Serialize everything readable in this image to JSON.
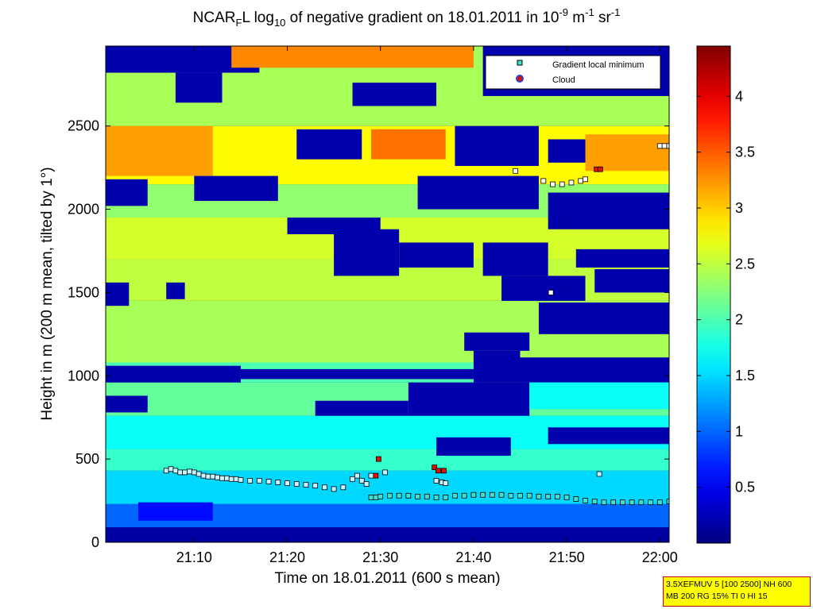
{
  "title": {
    "prefix": "NCAR",
    "sub1": "F",
    "mid1": "L log",
    "sub2": "10",
    "mid2": " of negative gradient on 18.01.2011 in 10",
    "sup1": "-9",
    "mid3": " m",
    "sup2": "-1",
    "mid4": " sr",
    "sup3": "-1"
  },
  "info_box": {
    "line1": "3.5XEFMUV 5 [100 2500] NH 600",
    "line2": "MB 200 RG 15% TI 0 HI 15"
  },
  "colors": {
    "colormap": "jet",
    "background_low": "#00007f",
    "marker_min_fill": "#ffffff",
    "marker_cloud": "#dd1100"
  },
  "chart_data": {
    "type": "heatmap",
    "xlabel": "Time on 18.01.2011 (600 s mean)",
    "ylabel": "Height in m (200 m mean, tilted by 1°)",
    "x_ticks": [
      "21:10",
      "21:20",
      "21:30",
      "21:40",
      "21:50",
      "22:00"
    ],
    "x_tick_minutes": [
      10,
      20,
      30,
      40,
      50,
      60
    ],
    "xlim_minutes_after_21h": [
      0.5,
      61
    ],
    "y_ticks": [
      "0",
      "500",
      "1000",
      "1500",
      "2000",
      "2500"
    ],
    "ylim": [
      0,
      2980
    ],
    "colorbar": {
      "ticks": [
        "0.5",
        "1",
        "1.5",
        "2",
        "2.5",
        "3",
        "3.5",
        "4"
      ],
      "tick_values": [
        0.5,
        1,
        1.5,
        2,
        2.5,
        3,
        3.5,
        4
      ],
      "range": [
        0,
        4.45
      ]
    },
    "legend": {
      "position": "top-right",
      "entries": [
        "Gradient local minimum",
        "Cloud"
      ]
    },
    "layers": [
      {
        "t0": 0.5,
        "t1": 61,
        "h0": 0,
        "h1": 90,
        "value": 0.15
      },
      {
        "t0": 0.5,
        "t1": 61,
        "h0": 90,
        "h1": 230,
        "value": 1.0
      },
      {
        "t0": 0.5,
        "t1": 61,
        "h0": 230,
        "h1": 430,
        "value": 1.5
      },
      {
        "t0": 0.5,
        "t1": 61,
        "h0": 430,
        "h1": 560,
        "value": 1.9
      },
      {
        "t0": 0.5,
        "t1": 61,
        "h0": 560,
        "h1": 760,
        "value": 1.7
      },
      {
        "t0": 0.5,
        "t1": 61,
        "h0": 760,
        "h1": 960,
        "value": 2.1
      },
      {
        "t0": 0.5,
        "t1": 61,
        "h0": 960,
        "h1": 1080,
        "value": 2.0
      },
      {
        "t0": 0.5,
        "t1": 61,
        "h0": 1080,
        "h1": 1450,
        "value": 2.4
      },
      {
        "t0": 0.5,
        "t1": 61,
        "h0": 1450,
        "h1": 1700,
        "value": 2.5
      },
      {
        "t0": 0.5,
        "t1": 61,
        "h0": 1700,
        "h1": 1950,
        "value": 2.6
      },
      {
        "t0": 0.5,
        "t1": 61,
        "h0": 1950,
        "h1": 2150,
        "value": 2.3
      },
      {
        "t0": 0.5,
        "t1": 61,
        "h0": 2150,
        "h1": 2500,
        "value": 2.8
      },
      {
        "t0": 0.5,
        "t1": 61,
        "h0": 2500,
        "h1": 2980,
        "value": 2.4
      }
    ],
    "patches": [
      {
        "t0": 0.5,
        "t1": 17,
        "h0": 2820,
        "h1": 2980,
        "value": 0.2
      },
      {
        "t0": 14,
        "t1": 40,
        "h0": 2850,
        "h1": 2980,
        "value": 3.3
      },
      {
        "t0": 41,
        "t1": 61,
        "h0": 2680,
        "h1": 2980,
        "value": 0.2
      },
      {
        "t0": 8,
        "t1": 13,
        "h0": 2640,
        "h1": 2820,
        "value": 0.2
      },
      {
        "t0": 27,
        "t1": 36,
        "h0": 2620,
        "h1": 2760,
        "value": 0.2
      },
      {
        "t0": 0.5,
        "t1": 12,
        "h0": 2200,
        "h1": 2500,
        "value": 3.2
      },
      {
        "t0": 29,
        "t1": 37,
        "h0": 2300,
        "h1": 2480,
        "value": 3.4
      },
      {
        "t0": 52,
        "t1": 61,
        "h0": 2230,
        "h1": 2450,
        "value": 3.2
      },
      {
        "t0": 21,
        "t1": 28,
        "h0": 2300,
        "h1": 2480,
        "value": 0.2
      },
      {
        "t0": 38,
        "t1": 47,
        "h0": 2260,
        "h1": 2500,
        "value": 0.2
      },
      {
        "t0": 48,
        "t1": 52,
        "h0": 2280,
        "h1": 2420,
        "value": 0.2
      },
      {
        "t0": 0.5,
        "t1": 5,
        "h0": 2020,
        "h1": 2180,
        "value": 0.2
      },
      {
        "t0": 10,
        "t1": 19,
        "h0": 2050,
        "h1": 2200,
        "value": 0.2
      },
      {
        "t0": 34,
        "t1": 47,
        "h0": 2000,
        "h1": 2200,
        "value": 0.2
      },
      {
        "t0": 48,
        "t1": 61,
        "h0": 1880,
        "h1": 2100,
        "value": 0.2
      },
      {
        "t0": 20,
        "t1": 30,
        "h0": 1850,
        "h1": 1950,
        "value": 0.2
      },
      {
        "t0": 25,
        "t1": 32,
        "h0": 1600,
        "h1": 1880,
        "value": 0.2
      },
      {
        "t0": 32,
        "t1": 40,
        "h0": 1650,
        "h1": 1800,
        "value": 0.2
      },
      {
        "t0": 41,
        "t1": 48,
        "h0": 1600,
        "h1": 1800,
        "value": 0.2
      },
      {
        "t0": 51,
        "t1": 61,
        "h0": 1650,
        "h1": 1760,
        "value": 0.2
      },
      {
        "t0": 43,
        "t1": 52,
        "h0": 1450,
        "h1": 1600,
        "value": 0.2
      },
      {
        "t0": 53,
        "t1": 61,
        "h0": 1500,
        "h1": 1640,
        "value": 0.2
      },
      {
        "t0": 0.5,
        "t1": 3,
        "h0": 1420,
        "h1": 1560,
        "value": 0.2
      },
      {
        "t0": 7,
        "t1": 9,
        "h0": 1460,
        "h1": 1560,
        "value": 0.2
      },
      {
        "t0": 47,
        "t1": 61,
        "h0": 1250,
        "h1": 1440,
        "value": 0.2
      },
      {
        "t0": 39,
        "t1": 46,
        "h0": 1150,
        "h1": 1260,
        "value": 0.2
      },
      {
        "t0": 40,
        "t1": 45,
        "h0": 960,
        "h1": 1150,
        "value": 0.2
      },
      {
        "t0": 45,
        "t1": 61,
        "h0": 960,
        "h1": 1110,
        "value": 0.2
      },
      {
        "t0": 0.5,
        "t1": 15,
        "h0": 960,
        "h1": 1060,
        "value": 0.2
      },
      {
        "t0": 15,
        "t1": 40,
        "h0": 980,
        "h1": 1040,
        "value": 0.2
      },
      {
        "t0": 33,
        "t1": 46,
        "h0": 760,
        "h1": 960,
        "value": 0.2
      },
      {
        "t0": 46,
        "t1": 61,
        "h0": 800,
        "h1": 960,
        "value": 1.7
      },
      {
        "t0": 23,
        "t1": 33,
        "h0": 760,
        "h1": 850,
        "value": 0.2
      },
      {
        "t0": 0.5,
        "t1": 5,
        "h0": 780,
        "h1": 880,
        "value": 0.2
      },
      {
        "t0": 48,
        "t1": 61,
        "h0": 590,
        "h1": 690,
        "value": 0.2
      },
      {
        "t0": 36,
        "t1": 44,
        "h0": 520,
        "h1": 630,
        "value": 0.2
      },
      {
        "t0": 4,
        "t1": 12,
        "h0": 130,
        "h1": 240,
        "value": 0.6
      }
    ],
    "gradient_local_minimum": {
      "t": [
        7,
        7.5,
        8,
        8.5,
        9,
        9.5,
        10,
        10.5,
        11,
        11.5,
        12,
        12.5,
        13,
        13.5,
        14,
        14.5,
        15,
        16,
        17,
        18,
        19,
        20,
        21,
        22,
        23,
        24,
        25,
        26,
        27,
        27.5,
        28,
        28.5,
        29,
        29.5,
        30,
        31,
        32,
        33,
        34,
        35,
        36,
        37,
        38,
        39,
        40,
        41,
        42,
        43,
        44,
        45,
        46,
        47,
        48,
        49,
        50,
        51,
        52,
        53,
        54,
        55,
        56,
        57,
        58,
        59,
        60,
        61,
        29,
        30.5,
        36,
        36.6,
        37,
        44.5,
        47.5,
        48.5,
        49.5,
        50.5,
        51.5,
        52,
        48.3,
        53.5,
        60,
        60.5,
        61
      ],
      "h": [
        430,
        440,
        430,
        420,
        420,
        425,
        420,
        410,
        400,
        395,
        395,
        390,
        385,
        385,
        380,
        380,
        375,
        370,
        370,
        365,
        360,
        355,
        350,
        345,
        340,
        330,
        320,
        330,
        380,
        400,
        370,
        350,
        270,
        270,
        275,
        280,
        280,
        280,
        275,
        275,
        270,
        270,
        280,
        280,
        285,
        285,
        285,
        285,
        280,
        280,
        280,
        275,
        275,
        275,
        270,
        260,
        250,
        245,
        240,
        240,
        240,
        240,
        240,
        240,
        240,
        245,
        400,
        420,
        370,
        360,
        355,
        2230,
        2170,
        2150,
        2150,
        2160,
        2170,
        2180,
        1500,
        410,
        2380,
        2380,
        2380
      ]
    },
    "cloud": {
      "t": [
        29.8,
        29.5,
        35.8,
        36.2,
        36.8,
        53.2,
        53.6
      ],
      "h": [
        500,
        400,
        450,
        430,
        430,
        2240,
        2240
      ]
    }
  }
}
